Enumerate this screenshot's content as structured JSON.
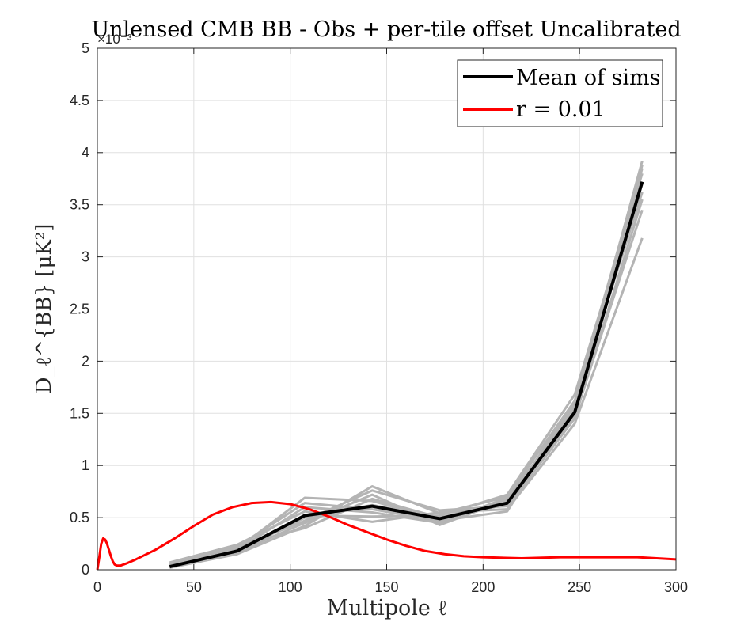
{
  "chart_data": {
    "type": "line",
    "title": "Unlensed CMB BB - Obs + per-tile offset Uncalibrated",
    "xlabel": "Multipole ℓ",
    "ylabel": "D_ℓ^{BB} [μK²]",
    "y_exponent_label": "×10⁻³",
    "xlim": [
      0,
      300
    ],
    "ylim": [
      0,
      0.005
    ],
    "grid": true,
    "legend_position": "top-right",
    "x_ticks": [
      0,
      50,
      100,
      150,
      200,
      250,
      300
    ],
    "x_tick_labels": [
      "0",
      "50",
      "100",
      "150",
      "200",
      "250",
      "300"
    ],
    "y_ticks": [
      0,
      0.0005,
      0.001,
      0.0015,
      0.002,
      0.0025,
      0.003,
      0.0035,
      0.004,
      0.0045,
      0.005
    ],
    "y_tick_labels": [
      "0",
      "0.5",
      "1",
      "1.5",
      "2",
      "2.5",
      "3",
      "3.5",
      "4",
      "4.5",
      "5"
    ],
    "legend": [
      {
        "label": "Mean of sims",
        "color": "#000000"
      },
      {
        "label": "r = 0.01",
        "color": "#ff0000"
      }
    ],
    "sims": {
      "color": "#b4b4b4",
      "x": [
        37.5,
        72.5,
        107.5,
        142.5,
        177.5,
        212.5,
        247.5,
        282.5
      ],
      "curves": [
        [
          4e-05,
          0.00018,
          0.0005,
          0.00062,
          0.0005,
          0.00066,
          0.0015,
          0.00372
        ],
        [
          6e-05,
          0.0002,
          0.00069,
          0.00066,
          0.00048,
          0.00063,
          0.00155,
          0.00392
        ],
        [
          2e-05,
          0.00015,
          0.00042,
          0.0008,
          0.00054,
          0.0007,
          0.00162,
          0.00388
        ],
        [
          7e-05,
          0.00024,
          0.00056,
          0.00046,
          0.00055,
          0.00058,
          0.0014,
          0.00318
        ],
        [
          3e-05,
          0.00017,
          0.00045,
          0.00072,
          0.00043,
          0.00067,
          0.00147,
          0.00345
        ],
        [
          5e-05,
          0.00022,
          0.00064,
          0.00058,
          0.00047,
          0.00056,
          0.00158,
          0.00362
        ],
        [
          2e-05,
          0.00016,
          0.00052,
          0.00051,
          0.00052,
          0.00072,
          0.00168,
          0.0038
        ],
        [
          6e-05,
          0.00021,
          0.00047,
          0.00076,
          0.00057,
          0.00061,
          0.00145,
          0.00355
        ],
        [
          4e-05,
          0.00019,
          0.0006,
          0.00055,
          0.00045,
          0.00069,
          0.00152,
          0.00385
        ],
        [
          3e-05,
          0.00023,
          0.0004,
          0.00068,
          0.0005,
          0.00064,
          0.0016,
          0.0037
        ]
      ]
    },
    "series": [
      {
        "name": "Mean of sims",
        "color": "#000000",
        "x": [
          37.5,
          72.5,
          107.5,
          142.5,
          177.5,
          212.5,
          247.5,
          282.5
        ],
        "y": [
          3e-05,
          0.00018,
          0.00052,
          0.00061,
          0.00049,
          0.00064,
          0.00151,
          0.00372
        ]
      },
      {
        "name": "r = 0.01",
        "color": "#ff0000",
        "x": [
          0,
          1,
          2,
          3,
          4,
          5,
          6,
          7,
          8,
          9,
          10,
          12,
          15,
          20,
          30,
          40,
          50,
          60,
          70,
          80,
          90,
          100,
          110,
          120,
          130,
          140,
          150,
          160,
          170,
          180,
          190,
          200,
          220,
          240,
          260,
          280,
          300
        ],
        "y": [
          0.0,
          0.00012,
          0.00025,
          0.0003,
          0.00029,
          0.00025,
          0.00019,
          0.00013,
          8e-05,
          5e-05,
          4e-05,
          4e-05,
          6e-05,
          0.0001,
          0.00019,
          0.0003,
          0.00042,
          0.00053,
          0.0006,
          0.00064,
          0.00065,
          0.00063,
          0.00058,
          0.00051,
          0.00043,
          0.00036,
          0.00029,
          0.00023,
          0.00018,
          0.00015,
          0.00013,
          0.00012,
          0.00011,
          0.00012,
          0.00012,
          0.00012,
          0.0001
        ]
      }
    ]
  }
}
